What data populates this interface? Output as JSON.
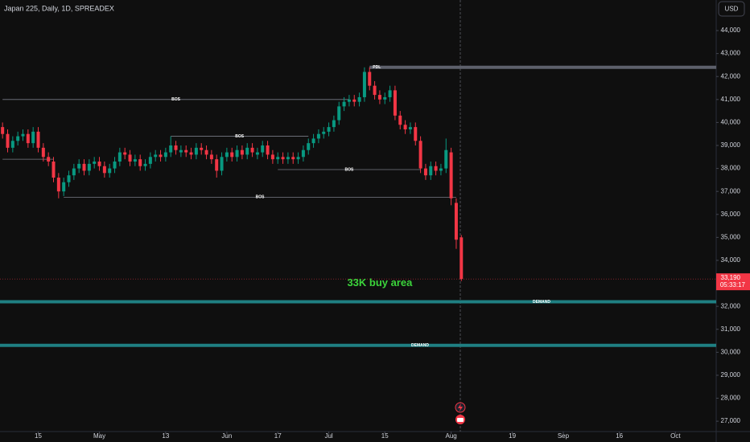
{
  "chart_data": {
    "type": "candlestick",
    "title": "Japan 225, Daily, 1D, SPREADEX",
    "currency": "USD",
    "up_color": "#089981",
    "down_color": "#f23645",
    "open": [
      39800,
      39500,
      38900,
      39200,
      39400,
      39500,
      39100,
      39600,
      38900,
      38500,
      38300,
      37600,
      37000,
      37400,
      37700,
      38000,
      38200,
      37900,
      38200,
      38300,
      38100,
      37800,
      38000,
      38300,
      38700,
      38600,
      38300,
      38400,
      38100,
      38200,
      38500,
      38600,
      38500,
      38700,
      39000,
      38700,
      38800,
      38700,
      38600,
      38900,
      38800,
      38600,
      38400,
      37900,
      38500,
      38700,
      38500,
      38800,
      38600,
      38900,
      38600,
      38700,
      39000,
      38600,
      38400,
      38500,
      38400,
      38500,
      38400,
      38500,
      38800,
      39100,
      39300,
      39500,
      39600,
      39800,
      40100,
      40700,
      40900,
      41000,
      40900,
      41100,
      42200,
      41600,
      41200,
      41000,
      41100,
      41400,
      40300,
      39900,
      39700,
      39800,
      39200,
      38000,
      37700,
      38100,
      37900,
      38000,
      38700,
      36500,
      35000
    ],
    "high": [
      40000,
      39700,
      39400,
      39600,
      39700,
      39700,
      39800,
      39800,
      39100,
      38700,
      38500,
      37800,
      37600,
      37900,
      38200,
      38400,
      38400,
      38400,
      38500,
      38500,
      38300,
      38200,
      38500,
      38900,
      38900,
      38800,
      38600,
      38600,
      38400,
      38700,
      38800,
      38800,
      38900,
      39400,
      39200,
      39000,
      39000,
      38900,
      39100,
      39100,
      39000,
      38800,
      38600,
      38700,
      38900,
      38900,
      39000,
      39000,
      39100,
      39100,
      38900,
      39200,
      39200,
      38800,
      38700,
      38700,
      38700,
      38700,
      38700,
      39000,
      39300,
      39500,
      39700,
      39800,
      40000,
      40300,
      40900,
      41100,
      41200,
      41200,
      41300,
      42400,
      42400,
      41800,
      41400,
      41300,
      41600,
      41600,
      40500,
      40100,
      40000,
      40000,
      39400,
      38200,
      38300,
      38300,
      38200,
      39300,
      38900,
      36700,
      35100
    ],
    "low": [
      39300,
      38700,
      38700,
      39000,
      39200,
      38900,
      38900,
      38700,
      38300,
      38100,
      37400,
      36700,
      36800,
      37200,
      37500,
      37800,
      37700,
      37700,
      38000,
      37900,
      37600,
      37600,
      37800,
      38100,
      38400,
      38100,
      38100,
      37900,
      37900,
      38000,
      38300,
      38300,
      38300,
      38500,
      38600,
      38500,
      38500,
      38400,
      38400,
      38600,
      38400,
      38200,
      37600,
      37700,
      38300,
      38300,
      38300,
      38400,
      38400,
      38500,
      38400,
      38500,
      38400,
      38200,
      38200,
      38200,
      38200,
      38200,
      38200,
      38300,
      38600,
      38900,
      39100,
      39300,
      39400,
      39600,
      39900,
      40500,
      40700,
      40700,
      40700,
      40900,
      41400,
      41000,
      40800,
      40800,
      40900,
      40100,
      39700,
      39500,
      39500,
      39000,
      37800,
      37500,
      37500,
      37700,
      37700,
      37800,
      36400,
      34500,
      33100
    ],
    "close": [
      39500,
      38900,
      39200,
      39400,
      39500,
      39100,
      39600,
      38900,
      38500,
      38300,
      37600,
      37000,
      37400,
      37700,
      38000,
      38200,
      37900,
      38200,
      38300,
      38100,
      37800,
      38000,
      38300,
      38700,
      38600,
      38300,
      38400,
      38100,
      38200,
      38500,
      38600,
      38500,
      38700,
      39000,
      38800,
      38800,
      38700,
      38600,
      38900,
      38800,
      38600,
      38400,
      37900,
      38500,
      38700,
      38500,
      38800,
      38600,
      38900,
      38700,
      38700,
      39000,
      38600,
      38400,
      38500,
      38400,
      38500,
      38400,
      38500,
      38800,
      39100,
      39300,
      39500,
      39600,
      39800,
      40100,
      40700,
      40900,
      41000,
      40900,
      41100,
      42200,
      41600,
      41200,
      41000,
      41100,
      41400,
      40300,
      39900,
      39700,
      39800,
      39200,
      38000,
      37700,
      38100,
      37900,
      38000,
      38800,
      36700,
      34900,
      33190
    ],
    "xlim": [
      -0.5,
      140
    ],
    "xticks": [
      {
        "value": 7,
        "label": "15"
      },
      {
        "value": 19,
        "label": "May"
      },
      {
        "value": 32,
        "label": "13"
      },
      {
        "value": 44,
        "label": "Jun"
      },
      {
        "value": 54,
        "label": "17"
      },
      {
        "value": 64,
        "label": "Jul"
      },
      {
        "value": 75,
        "label": "15"
      },
      {
        "value": 88,
        "label": "Aug"
      },
      {
        "value": 100,
        "label": "19"
      },
      {
        "value": 110,
        "label": "Sep"
      },
      {
        "value": 121,
        "label": "16"
      },
      {
        "value": 132,
        "label": "Oct"
      }
    ],
    "ylim": [
      26550,
      45330
    ],
    "yticks": [
      {
        "value": 27000,
        "label": "27,000"
      },
      {
        "value": 28000,
        "label": "28,000"
      },
      {
        "value": 29000,
        "label": "29,000"
      },
      {
        "value": 30000,
        "label": "30,000"
      },
      {
        "value": 31000,
        "label": "31,000"
      },
      {
        "value": 32000,
        "label": "32,000"
      },
      {
        "value": 33000,
        "label": "33,000"
      },
      {
        "value": 34000,
        "label": "34,000"
      },
      {
        "value": 35000,
        "label": "35,000"
      },
      {
        "value": 36000,
        "label": "36,000"
      },
      {
        "value": 37000,
        "label": "37,000"
      },
      {
        "value": 38000,
        "label": "38,000"
      },
      {
        "value": 39000,
        "label": "39,000"
      },
      {
        "value": 40000,
        "label": "40,000"
      },
      {
        "value": 41000,
        "label": "41,000"
      },
      {
        "value": 42000,
        "label": "42,000"
      },
      {
        "value": 43000,
        "label": "43,000"
      },
      {
        "value": 44000,
        "label": "44,000"
      }
    ],
    "levels": [
      {
        "label": "BOS",
        "price": 41000,
        "from": 0,
        "to": 68,
        "color": "#787b86"
      },
      {
        "label": "BOS",
        "price": 39400,
        "from": 33,
        "to": 60,
        "color": "#787b86"
      },
      {
        "price": 38400,
        "from": 0,
        "to": 10,
        "color": "#787b86"
      },
      {
        "label": "BOS",
        "price": 37950,
        "from": 54,
        "to": 82,
        "color": "#787b86"
      },
      {
        "label": "BOS",
        "price": 36750,
        "from": 12,
        "to": 89,
        "color": "#787b86"
      },
      {
        "label": "PDL",
        "price": 42400,
        "from": 72,
        "to": 140,
        "color": "#5d606b"
      },
      {
        "label": "DEMAND",
        "price": 32200,
        "from": -0.5,
        "to": 140,
        "color": "#1f7f82"
      },
      {
        "label": "DEMAND",
        "price": 30300,
        "from": -0.5,
        "to": 140,
        "color": "#1f7f82"
      }
    ],
    "annotation": {
      "text": "33K buy area",
      "price": 33000,
      "at": 74,
      "color": "#3bd43b"
    },
    "last_price": {
      "value": 33190,
      "label": "33,190"
    },
    "countdown": "05:33:17"
  }
}
